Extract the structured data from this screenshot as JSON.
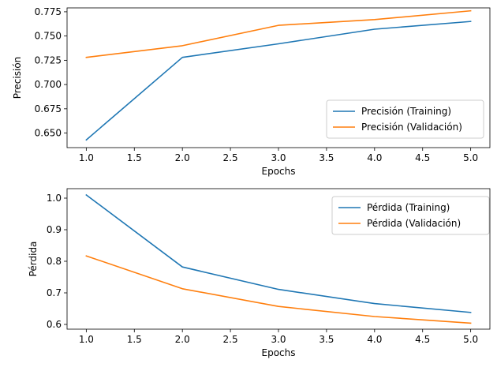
{
  "chart_data": [
    {
      "type": "line",
      "title": "",
      "xlabel": "Epochs",
      "ylabel": "Precisión",
      "xlim": [
        0.8,
        5.2
      ],
      "ylim": [
        0.635,
        0.779
      ],
      "xticks": [
        "1.0",
        "1.5",
        "2.0",
        "2.5",
        "3.0",
        "3.5",
        "4.0",
        "4.5",
        "5.0"
      ],
      "yticks": [
        "0.650",
        "0.675",
        "0.700",
        "0.725",
        "0.750",
        "0.775"
      ],
      "grid": false,
      "legend_position": "lower-right",
      "x": [
        1,
        2,
        3,
        4,
        5
      ],
      "series": [
        {
          "name": "Precisión (Training)",
          "color": "#1f77b4",
          "values": [
            0.643,
            0.728,
            0.742,
            0.757,
            0.765
          ]
        },
        {
          "name": "Precisión (Validación)",
          "color": "#ff7f0e",
          "values": [
            0.728,
            0.74,
            0.761,
            0.767,
            0.776
          ]
        }
      ]
    },
    {
      "type": "line",
      "title": "",
      "xlabel": "Epochs",
      "ylabel": "Pérdida",
      "xlim": [
        0.8,
        5.2
      ],
      "ylim": [
        0.585,
        1.03
      ],
      "xticks": [
        "1.0",
        "1.5",
        "2.0",
        "2.5",
        "3.0",
        "3.5",
        "4.0",
        "4.5",
        "5.0"
      ],
      "yticks": [
        "0.6",
        "0.7",
        "0.8",
        "0.9",
        "1.0"
      ],
      "grid": false,
      "legend_position": "upper-right",
      "x": [
        1,
        2,
        3,
        4,
        5
      ],
      "series": [
        {
          "name": "Pérdida (Training)",
          "color": "#1f77b4",
          "values": [
            1.01,
            0.782,
            0.711,
            0.666,
            0.638
          ]
        },
        {
          "name": "Pérdida (Validación)",
          "color": "#ff7f0e",
          "values": [
            0.817,
            0.713,
            0.657,
            0.625,
            0.604
          ]
        }
      ]
    }
  ]
}
